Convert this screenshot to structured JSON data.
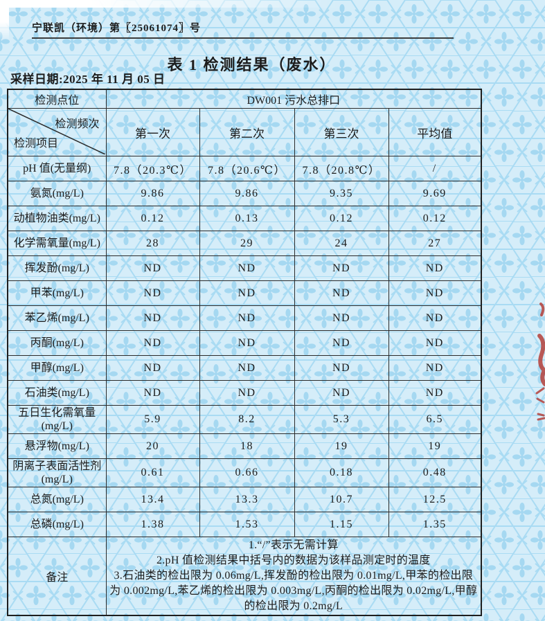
{
  "document": {
    "report_no": "宁联凯（环境）第〖25061074〗号",
    "title": "表 1 检测结果（废水）",
    "sampling_date": "采样日期:2025 年 11 月 05 日"
  },
  "table": {
    "point_label": "检测点位",
    "point_value": "DW001 污水总排口",
    "freq_label": "检测频次",
    "item_label": "检测项目",
    "columns": [
      "第一次",
      "第二次",
      "第三次",
      "平均值"
    ],
    "rows": [
      {
        "item": "pH 值(无量纲)",
        "values": [
          "7.8（20.3℃）",
          "7.8（20.6℃）",
          "7.8（20.8℃）",
          "/"
        ]
      },
      {
        "item": "氨氮(mg/L)",
        "values": [
          "9.86",
          "9.86",
          "9.35",
          "9.69"
        ]
      },
      {
        "item": "动植物油类(mg/L)",
        "values": [
          "0.12",
          "0.13",
          "0.12",
          "0.12"
        ]
      },
      {
        "item": "化学需氧量(mg/L)",
        "values": [
          "28",
          "29",
          "24",
          "27"
        ]
      },
      {
        "item": "挥发酚(mg/L)",
        "values": [
          "ND",
          "ND",
          "ND",
          "ND"
        ]
      },
      {
        "item": "甲苯(mg/L)",
        "values": [
          "ND",
          "ND",
          "ND",
          "ND"
        ]
      },
      {
        "item": "苯乙烯(mg/L)",
        "values": [
          "ND",
          "ND",
          "ND",
          "ND"
        ]
      },
      {
        "item": "丙酮(mg/L)",
        "values": [
          "ND",
          "ND",
          "ND",
          "ND"
        ]
      },
      {
        "item": "甲醇(mg/L)",
        "values": [
          "ND",
          "ND",
          "ND",
          "ND"
        ]
      },
      {
        "item": "石油类(mg/L)",
        "values": [
          "ND",
          "ND",
          "ND",
          "ND"
        ]
      },
      {
        "item": "五日生化需氧量\n(mg/L)",
        "values": [
          "5.9",
          "8.2",
          "5.3",
          "6.5"
        ],
        "tall": true
      },
      {
        "item": "悬浮物(mg/L)",
        "values": [
          "20",
          "18",
          "19",
          "19"
        ]
      },
      {
        "item": "阴离子表面活性剂\n(mg/L)",
        "values": [
          "0.61",
          "0.66",
          "0.18",
          "0.48"
        ],
        "tall": true
      },
      {
        "item": "总氮(mg/L)",
        "values": [
          "13.4",
          "13.3",
          "10.7",
          "12.5"
        ]
      },
      {
        "item": "总磷(mg/L)",
        "values": [
          "1.38",
          "1.53",
          "1.15",
          "1.35"
        ]
      }
    ],
    "remark_label": "备注",
    "remarks": [
      "1.“/”表示无需计算",
      "2.pH 值检测结果中括号内的数据为该样品测定时的温度",
      "3.石油类的检出限为 0.06mg/L,挥发酚的检出限为 0.01mg/L,甲苯的检出限为 0.002mg/L,苯乙烯的检出限为 0.003mg/L,丙酮的检出限为 0.02mg/L,甲醇的检出限为 0.2mg/L"
    ]
  },
  "decor": {
    "pattern_base_color": "#d5edf9",
    "pattern_motif_color": "#a9dbf3",
    "stamp_fragment_color": "#b5403a",
    "stamp_fragment_icon": "partial-red-seal-marks"
  }
}
